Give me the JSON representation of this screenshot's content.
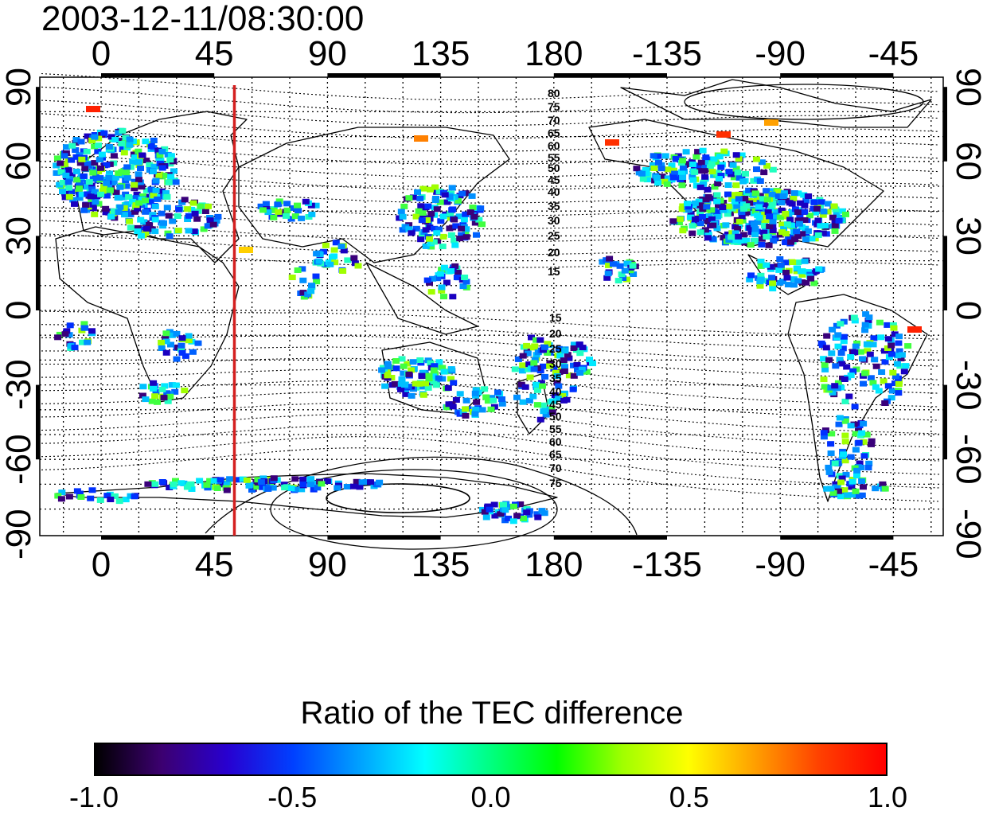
{
  "title": "2003-12-11/08:30:00",
  "axes": {
    "longitude_ticks": [
      "0",
      "45",
      "90",
      "135",
      "180",
      "-135",
      "-90",
      "-45"
    ],
    "latitude_ticks": [
      "90",
      "60",
      "30",
      "0",
      "-30",
      "-60",
      "-90"
    ],
    "longitude_values": [
      0,
      45,
      90,
      135,
      180,
      225,
      270,
      315
    ],
    "latitude_values": [
      90,
      60,
      30,
      0,
      -30,
      -60,
      -90
    ]
  },
  "meridian_marker": {
    "longitude": 53,
    "color": "#d42020"
  },
  "contour_labels_north": [
    "80",
    "75",
    "70",
    "65",
    "60",
    "55",
    "50",
    "45",
    "40",
    "35",
    "30",
    "25",
    "20",
    "15"
  ],
  "contour_labels_south": [
    "15",
    "20",
    "25",
    "30",
    "35",
    "40",
    "45",
    "50",
    "55",
    "60",
    "65",
    "70",
    "75"
  ],
  "colorbar": {
    "title": "Ratio of the TEC difference",
    "tick_labels": [
      "-1.0",
      "-0.5",
      "0.0",
      "0.5",
      "1.0"
    ],
    "tick_values": [
      -1.0,
      -0.5,
      0.0,
      0.5,
      1.0
    ],
    "range": [
      -1.0,
      1.0
    ],
    "colors": [
      "#000000",
      "#3c0070",
      "#2800d0",
      "#0040ff",
      "#00a0ff",
      "#00ffff",
      "#00ff80",
      "#00ff00",
      "#a0ff00",
      "#ffff00",
      "#ffa000",
      "#ff4000",
      "#ff0000"
    ]
  }
}
